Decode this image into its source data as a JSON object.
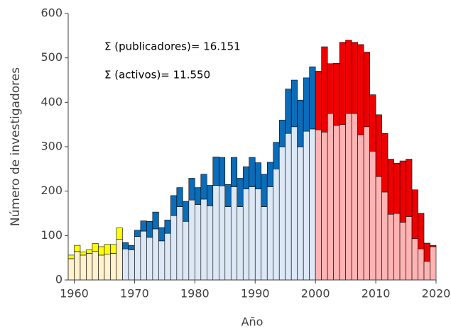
{
  "chart_data": {
    "type": "bar",
    "xlabel": "Año",
    "ylabel": "Número de investigadores",
    "annotations": [
      "Σ (publicadores)= 16.151",
      "Σ (activos)= 11.550"
    ],
    "xlim": [
      1959,
      2020
    ],
    "xticks": [
      1960,
      1970,
      1980,
      1990,
      2000,
      2010,
      2020
    ],
    "ylim": [
      0,
      600
    ],
    "yticks": [
      0,
      100,
      200,
      300,
      400,
      500,
      600
    ],
    "stacked": true,
    "periods": [
      {
        "x": [
          1960,
          1961,
          1962,
          1963,
          1964,
          1965,
          1966,
          1967,
          1968
        ],
        "series": [
          {
            "color": "#fff2cc",
            "values": [
              48,
              64,
              56,
              60,
              65,
              56,
              58,
              60,
              92
            ]
          },
          {
            "color": "#ffff00",
            "values": [
              8,
              14,
              7,
              8,
              17,
              19,
              22,
              20,
              25
            ]
          }
        ]
      },
      {
        "x": [
          1969,
          1970,
          1971,
          1972,
          1973,
          1974,
          1975,
          1976,
          1977,
          1978,
          1979,
          1980,
          1981,
          1982,
          1983,
          1984,
          1985,
          1986,
          1987,
          1988,
          1989,
          1990,
          1991,
          1992,
          1993,
          1994,
          1995,
          1996,
          1997,
          1998,
          1999,
          2000
        ],
        "series": [
          {
            "color": "#dce8f5",
            "values": [
              70,
              68,
              98,
              110,
              96,
              115,
              88,
              105,
              145,
              165,
              132,
              180,
              170,
              182,
              167,
              213,
              212,
              165,
              210,
              165,
              205,
              210,
              205,
              165,
              210,
              250,
              300,
              330,
              345,
              300,
              335,
              340
            ]
          },
          {
            "color": "#0b6cb8",
            "values": [
              14,
              10,
              14,
              23,
              36,
              38,
              30,
              30,
              45,
              43,
              45,
              49,
              38,
              56,
              46,
              64,
              64,
              50,
              66,
              64,
              50,
              66,
              59,
              73,
              55,
              60,
              60,
              100,
              105,
              105,
              120,
              140
            ]
          }
        ]
      },
      {
        "x": [
          2001,
          2002,
          2003,
          2004,
          2005,
          2006,
          2007,
          2008,
          2009,
          2010,
          2011,
          2012,
          2013,
          2014,
          2015,
          2016,
          2017,
          2018,
          2019,
          2020
        ],
        "series": [
          {
            "color": "#ffb3b3",
            "values": [
              338,
              333,
              375,
              348,
              350,
              375,
              375,
              327,
              345,
              290,
              233,
              198,
              148,
              150,
              130,
              143,
              93,
              70,
              42,
              75
            ]
          },
          {
            "color": "#ee0000",
            "values": [
              132,
              192,
              112,
              140,
              185,
              165,
              160,
              203,
              168,
              127,
              139,
              132,
              124,
              113,
              138,
              129,
              110,
              80,
              41,
              3
            ]
          }
        ]
      }
    ]
  }
}
